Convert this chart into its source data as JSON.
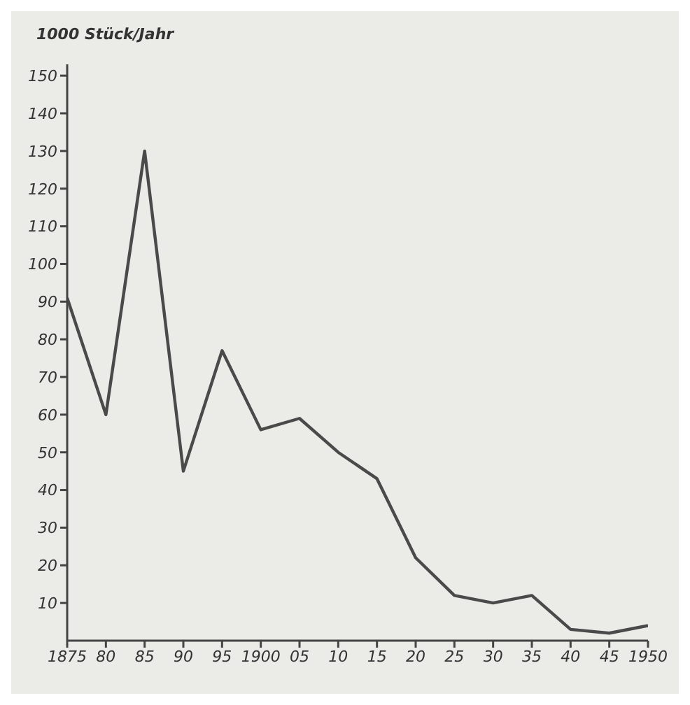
{
  "chart_data": {
    "type": "line",
    "ylabel": "1000 Stück/Jahr",
    "x": [
      1875,
      1880,
      1885,
      1890,
      1895,
      1900,
      1905,
      1910,
      1915,
      1920,
      1925,
      1930,
      1935,
      1940,
      1945,
      1950
    ],
    "series": [
      {
        "color": "#4a4a4a",
        "values": [
          91,
          60,
          130,
          45,
          77,
          56,
          59,
          50,
          43,
          22,
          12,
          10,
          12,
          3,
          2,
          4
        ]
      }
    ],
    "xlim": [
      1875,
      1950
    ],
    "xticks": [
      1875,
      {
        "value": 1880,
        "label": "80"
      },
      {
        "value": 1885,
        "label": "85"
      },
      {
        "value": 1890,
        "label": "90"
      },
      {
        "value": 1895,
        "label": "95"
      },
      1900,
      {
        "value": 1905,
        "label": "05"
      },
      {
        "value": 1910,
        "label": "10"
      },
      {
        "value": 1915,
        "label": "15"
      },
      {
        "value": 1920,
        "label": "20"
      },
      {
        "value": 1925,
        "label": "25"
      },
      {
        "value": 1930,
        "label": "30"
      },
      {
        "value": 1935,
        "label": "35"
      },
      {
        "value": 1940,
        "label": "40"
      },
      {
        "value": 1945,
        "label": "45"
      },
      1950
    ],
    "ylim": [
      0,
      153
    ],
    "yticks": [
      10,
      20,
      30,
      40,
      50,
      60,
      70,
      80,
      90,
      100,
      110,
      120,
      130,
      140,
      150
    ],
    "grid": false,
    "legend": false,
    "marker": "none",
    "line_style": "solid"
  }
}
